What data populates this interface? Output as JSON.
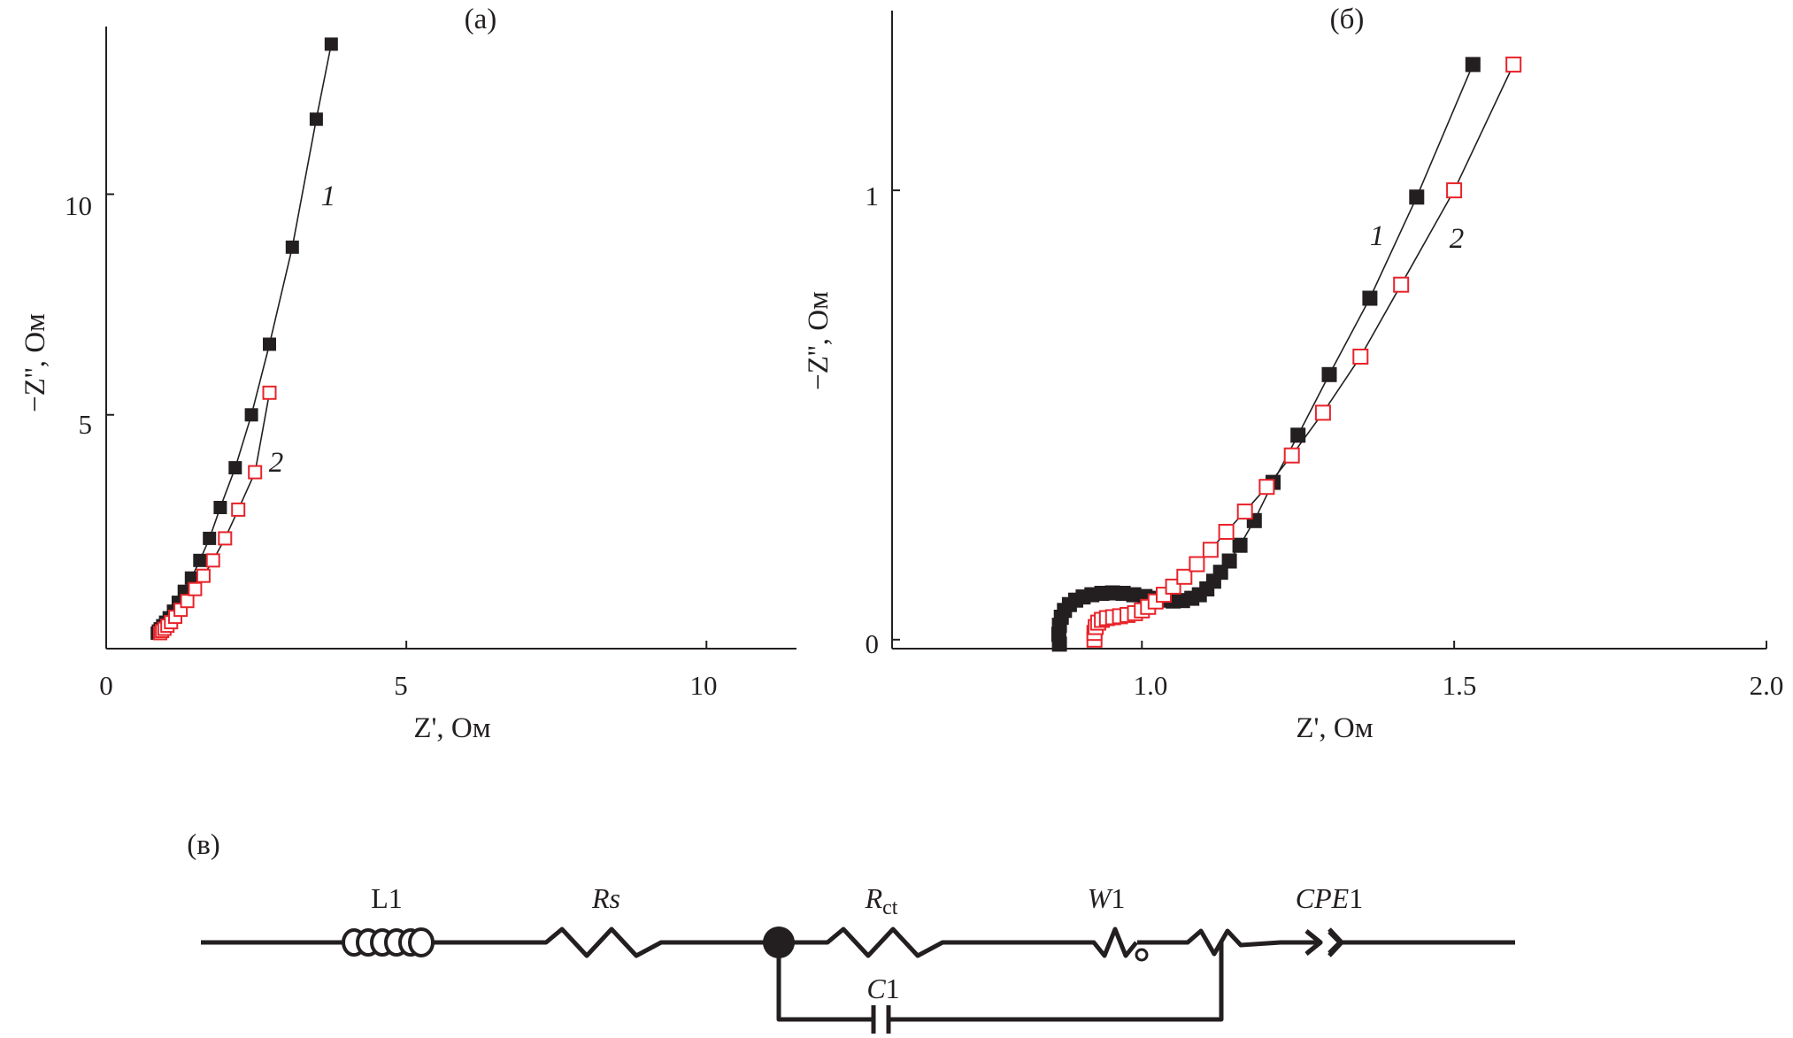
{
  "panels": [
    {
      "label": "(а)",
      "xlabel": "Z', Ом",
      "ylabel": "−Z'', Ом",
      "xticks": [
        "0",
        "5",
        "10"
      ],
      "yticks": [
        "5",
        "10"
      ]
    },
    {
      "label": "(б)",
      "xlabel": "Z', Ом",
      "ylabel": "−Z'', Ом",
      "xticks": [
        "1.0",
        "1.5",
        "2.0"
      ],
      "yticks": [
        "0",
        "1"
      ]
    }
  ],
  "colors": {
    "series1": "#231f20",
    "series2": "#e8232a"
  },
  "chart_data": [
    {
      "type": "scatter",
      "title": "(а)",
      "xlabel": "Z', Ом",
      "ylabel": "−Z'', Ом",
      "xlim": [
        0,
        11.5
      ],
      "ylim": [
        -0.3,
        13.8
      ],
      "xticks": [
        0,
        5,
        10
      ],
      "yticks": [
        5,
        10
      ],
      "series": [
        {
          "name": "1",
          "marker": "filled-square",
          "color": "#231f20",
          "x": [
            0.85,
            0.87,
            0.9,
            0.94,
            0.99,
            1.05,
            1.12,
            1.2,
            1.3,
            1.42,
            1.56,
            1.72,
            1.9,
            2.15,
            2.42,
            2.72,
            3.1,
            3.5,
            3.75
          ],
          "y": [
            0.05,
            0.1,
            0.15,
            0.22,
            0.3,
            0.4,
            0.55,
            0.75,
            1.0,
            1.3,
            1.7,
            2.2,
            2.9,
            3.8,
            5.0,
            6.6,
            8.8,
            11.7,
            13.4
          ]
        },
        {
          "name": "2",
          "marker": "open-square",
          "color": "#e8232a",
          "x": [
            0.9,
            0.93,
            0.97,
            1.02,
            1.08,
            1.15,
            1.24,
            1.35,
            1.48,
            1.62,
            1.78,
            1.98,
            2.2,
            2.48,
            2.72
          ],
          "y": [
            0.05,
            0.1,
            0.15,
            0.22,
            0.3,
            0.42,
            0.58,
            0.78,
            1.05,
            1.35,
            1.7,
            2.2,
            2.85,
            3.7,
            5.5
          ]
        }
      ],
      "annotations": [
        {
          "text": "1",
          "x": 3.7,
          "y": 10.3
        },
        {
          "text": "2",
          "x": 2.85,
          "y": 4.0
        }
      ]
    },
    {
      "type": "scatter",
      "title": "(б)",
      "xlabel": "Z', Ом",
      "ylabel": "−Z'', Ом",
      "xlim": [
        0.6,
        2.0
      ],
      "ylim": [
        -0.02,
        1.4
      ],
      "xticks": [
        1.0,
        1.5,
        2.0
      ],
      "yticks": [
        0,
        1
      ],
      "series": [
        {
          "name": "1",
          "marker": "filled-square",
          "color": "#231f20",
          "x": [
            0.868,
            0.867,
            0.868,
            0.871,
            0.876,
            0.884,
            0.894,
            0.906,
            0.92,
            0.936,
            0.953,
            0.97,
            0.987,
            1.005,
            1.02,
            1.035,
            1.05,
            1.065,
            1.08,
            1.092,
            1.104,
            1.115,
            1.126,
            1.14,
            1.157,
            1.18,
            1.21,
            1.25,
            1.3,
            1.365,
            1.44,
            1.53
          ],
          "y": [
            -0.01,
            0.012,
            0.032,
            0.05,
            0.065,
            0.078,
            0.088,
            0.095,
            0.1,
            0.103,
            0.104,
            0.103,
            0.1,
            0.096,
            0.092,
            0.088,
            0.086,
            0.087,
            0.092,
            0.1,
            0.113,
            0.13,
            0.15,
            0.175,
            0.21,
            0.265,
            0.35,
            0.455,
            0.59,
            0.76,
            0.985,
            1.28
          ]
        },
        {
          "name": "2",
          "marker": "open-square",
          "color": "#e8232a",
          "x": [
            0.924,
            0.924,
            0.926,
            0.93,
            0.936,
            0.944,
            0.954,
            0.965,
            0.977,
            0.989,
            1.0,
            1.01,
            1.022,
            1.035,
            1.05,
            1.068,
            1.088,
            1.11,
            1.135,
            1.165,
            1.2,
            1.24,
            1.29,
            1.35,
            1.415,
            1.5,
            1.595
          ],
          "y": [
            0.0,
            0.015,
            0.028,
            0.038,
            0.044,
            0.048,
            0.05,
            0.052,
            0.055,
            0.059,
            0.065,
            0.073,
            0.085,
            0.1,
            0.118,
            0.14,
            0.168,
            0.2,
            0.24,
            0.285,
            0.34,
            0.41,
            0.505,
            0.63,
            0.79,
            1.0,
            1.28
          ]
        }
      ],
      "annotations": [
        {
          "text": "1",
          "x": 1.345,
          "y": 0.9
        },
        {
          "text": "2",
          "x": 1.49,
          "y": 0.89
        }
      ]
    }
  ],
  "circuit": {
    "label": "(в)",
    "elements": [
      {
        "name": "L1",
        "text": "L1"
      },
      {
        "name": "Rs",
        "text": "Rs"
      },
      {
        "name": "Rct",
        "text": "R",
        "sub": "ct"
      },
      {
        "name": "W1",
        "main": "W",
        "suffix": "1"
      },
      {
        "name": "CPE1",
        "main": "CPE",
        "suffix": "1"
      },
      {
        "name": "C1",
        "main": "C",
        "suffix": "1"
      }
    ]
  }
}
